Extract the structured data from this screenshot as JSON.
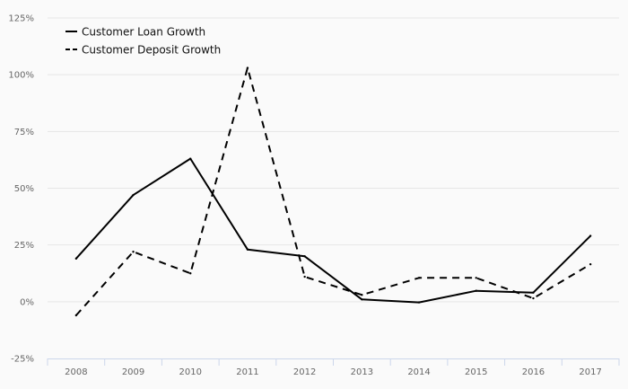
{
  "chart_data": {
    "type": "line",
    "title": "",
    "xlabel": "",
    "ylabel": "",
    "categories": [
      "2008",
      "2009",
      "2010",
      "2011",
      "2012",
      "2013",
      "2014",
      "2015",
      "2016",
      "2017"
    ],
    "series": [
      {
        "name": "Customer Loan Growth",
        "line_style": "solid",
        "values": [
          19,
          47,
          63,
          23,
          20,
          1,
          -0.3,
          4.8,
          4,
          29
        ]
      },
      {
        "name": "Customer Deposit Growth",
        "line_style": "dashed",
        "values": [
          -6,
          22,
          12.5,
          103,
          11,
          3,
          10.5,
          10.5,
          1.5,
          16.5
        ]
      }
    ],
    "ylim": [
      -25,
      125
    ],
    "yticks": [
      -25,
      0,
      25,
      50,
      75,
      100,
      125
    ],
    "ytick_labels": [
      "-25%",
      "0%",
      "25%",
      "50%",
      "75%",
      "100%",
      "125%"
    ],
    "grid": "horizontal",
    "legend_position": "top-left",
    "colors": {
      "line": "#000000",
      "grid": "#e6e6e6",
      "axis": "#ccd6eb",
      "tick_text": "#666666"
    }
  }
}
